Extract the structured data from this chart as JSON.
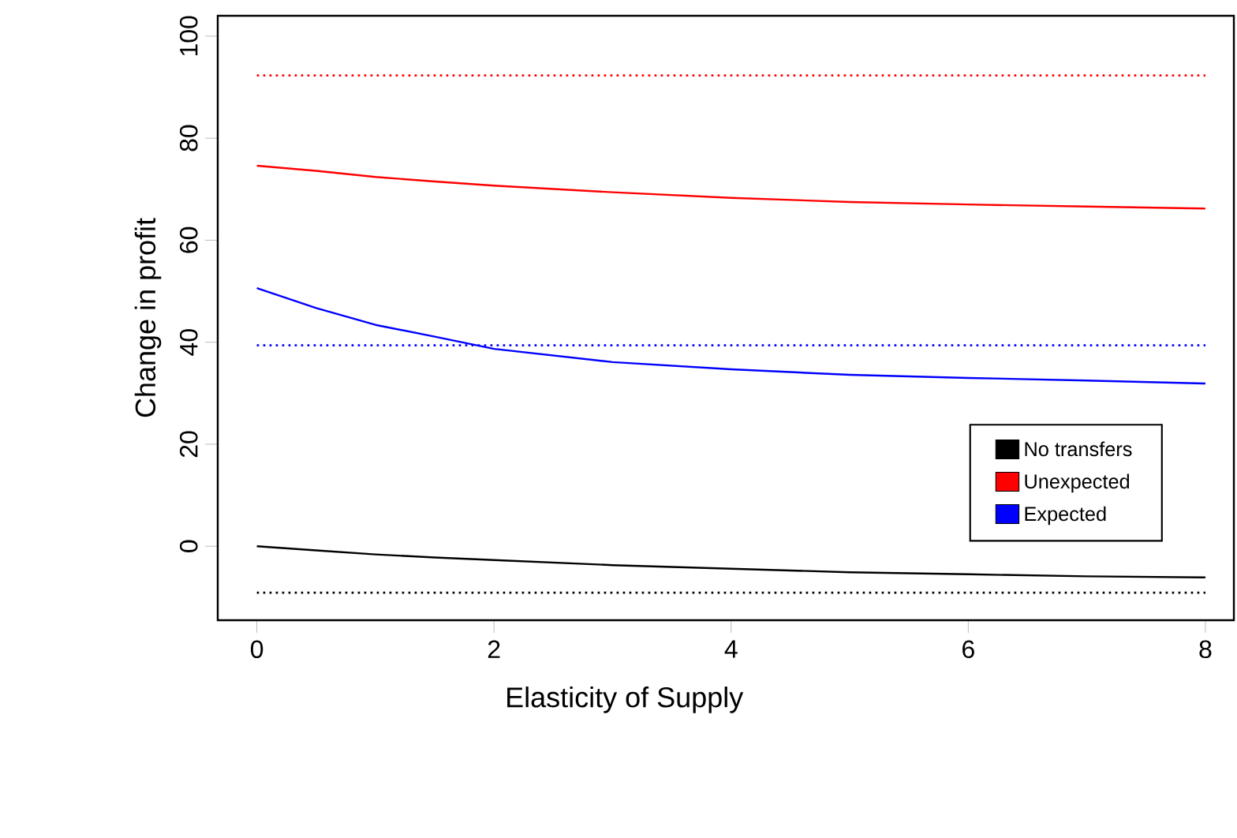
{
  "chart_data": {
    "type": "line",
    "xlabel": "Elasticity of Supply",
    "ylabel": "Change in profit",
    "x": [
      0,
      0.5,
      1,
      1.5,
      2,
      3,
      4,
      5,
      6,
      7,
      8
    ],
    "series": [
      {
        "name": "No transfers",
        "color": "#000000",
        "values": [
          0,
          -0.8,
          -1.6,
          -2.2,
          -2.7,
          -3.7,
          -4.4,
          -5.1,
          -5.5,
          -5.9,
          -6.1
        ]
      },
      {
        "name": "Unexpected",
        "color": "#ff0000",
        "values": [
          74.6,
          73.6,
          72.4,
          71.5,
          70.7,
          69.4,
          68.3,
          67.5,
          67.0,
          66.6,
          66.2
        ]
      },
      {
        "name": "Expected",
        "color": "#0000ff",
        "values": [
          50.6,
          46.7,
          43.4,
          41.1,
          38.7,
          36.1,
          34.7,
          33.6,
          33.0,
          32.5,
          31.9
        ]
      }
    ],
    "ref_lines": [
      {
        "axis": "y",
        "value": 92.3,
        "color": "#ff0000",
        "line_style": "dotted"
      },
      {
        "axis": "y",
        "value": 39.4,
        "color": "#0000ff",
        "line_style": "dotted"
      },
      {
        "axis": "y",
        "value": -9.1,
        "color": "#000000",
        "line_style": "dotted"
      }
    ],
    "xlim": [
      -0.33,
      8.24
    ],
    "ylim": [
      -14.5,
      104
    ],
    "xticks": [
      0,
      2,
      4,
      6,
      8
    ],
    "yticks": [
      0,
      20,
      40,
      60,
      80,
      100
    ],
    "legend": "bottom right",
    "line_style": "solid",
    "marker": "none",
    "grid": false
  }
}
